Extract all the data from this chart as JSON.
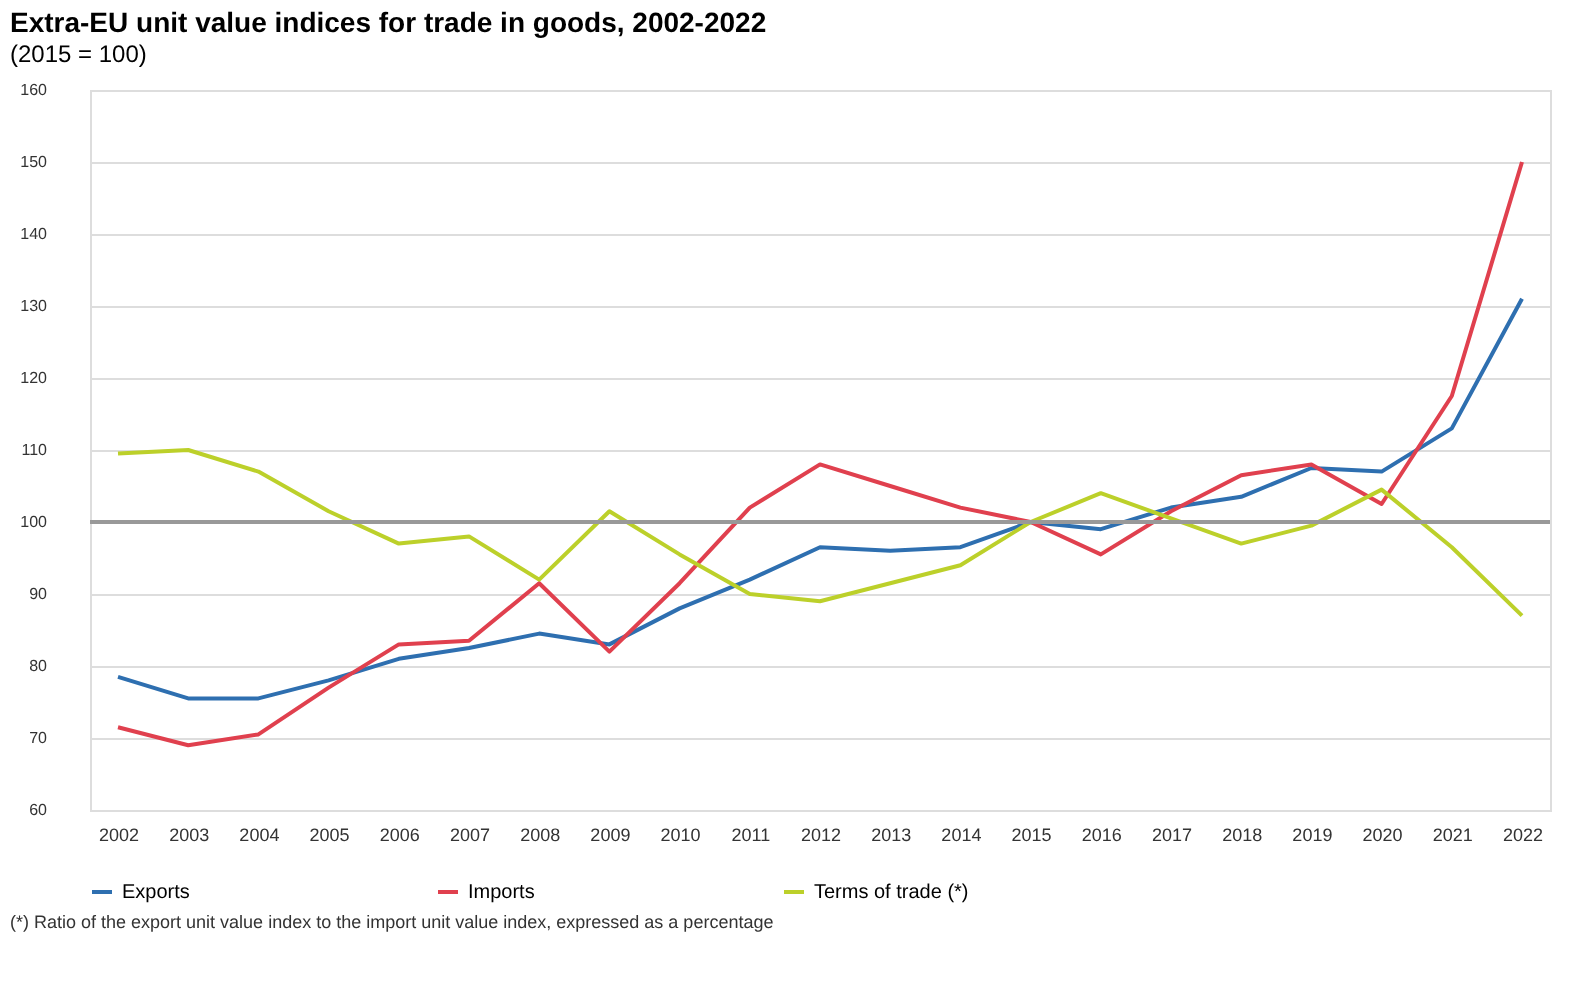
{
  "chart_data": {
    "type": "line",
    "title": "Extra-EU unit value indices for trade in goods, 2002-2022",
    "subtitle": "(2015 = 100)",
    "categories": [
      "2002",
      "2003",
      "2004",
      "2005",
      "2006",
      "2007",
      "2008",
      "2009",
      "2010",
      "2011",
      "2012",
      "2013",
      "2014",
      "2015",
      "2016",
      "2017",
      "2018",
      "2019",
      "2020",
      "2021",
      "2022"
    ],
    "series": [
      {
        "name": "Exports",
        "color": "#2e6fb0",
        "values": [
          78.5,
          75.5,
          75.5,
          78,
          81,
          82.5,
          84.5,
          83,
          88,
          92,
          96.5,
          96,
          96.5,
          100,
          99,
          102,
          103.5,
          107.5,
          107,
          113,
          131
        ]
      },
      {
        "name": "Imports",
        "color": "#e0404e",
        "values": [
          71.5,
          69,
          70.5,
          77,
          83,
          83.5,
          91.5,
          82,
          91.5,
          102,
          108,
          105,
          102,
          100,
          95.5,
          101.5,
          106.5,
          108,
          102.5,
          117.5,
          150
        ]
      },
      {
        "name": "Terms of trade (*)",
        "color": "#bcd02a",
        "values": [
          109.5,
          110,
          107,
          101.5,
          97,
          98,
          92,
          101.5,
          95.5,
          90,
          89,
          91.5,
          94,
          100,
          104,
          100.5,
          97,
          99.5,
          104.5,
          96.5,
          87
        ]
      }
    ],
    "ylim": [
      60,
      160
    ],
    "yticks": [
      60,
      70,
      80,
      90,
      100,
      110,
      120,
      130,
      140,
      150,
      160
    ],
    "ref_lines": [
      {
        "axis": "y",
        "value": 100,
        "color": "#999999"
      }
    ],
    "grid": "y",
    "legend": "bottom",
    "marker": "none",
    "line_style": "solid",
    "annotations": [
      "(*) Ratio of the export unit value index to the import unit value index, expressed as a percentage"
    ]
  }
}
